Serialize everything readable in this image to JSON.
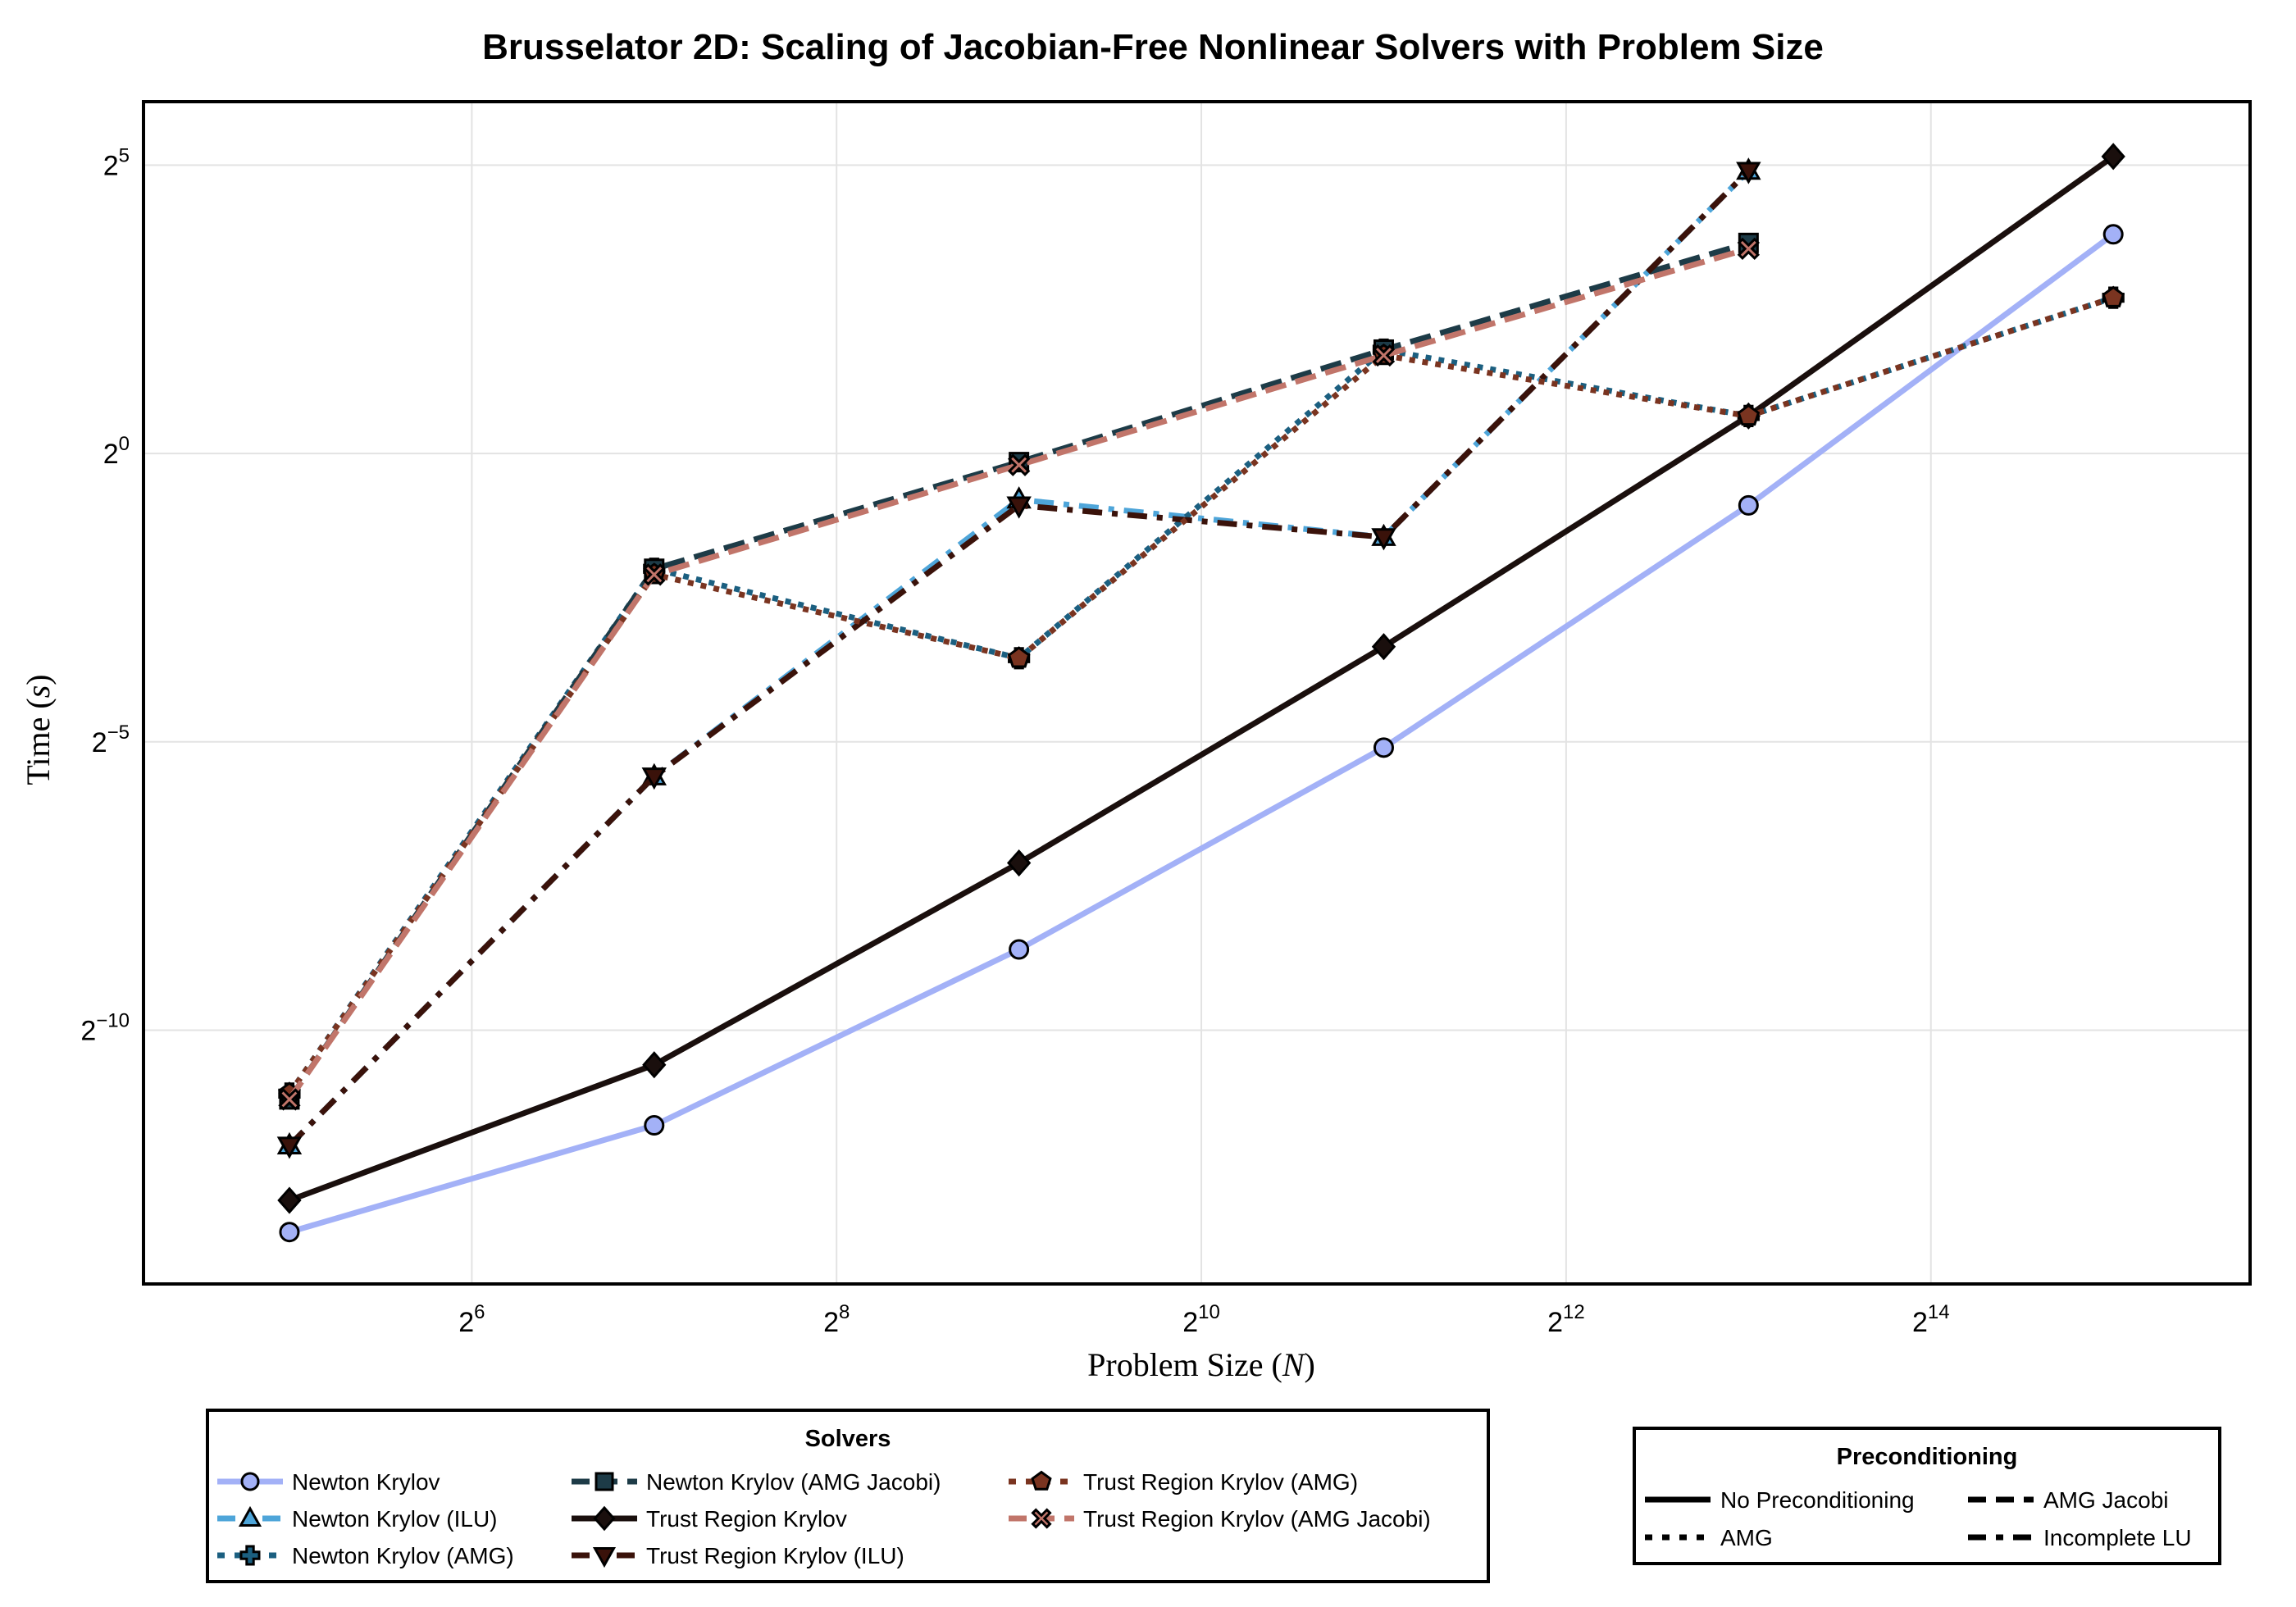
{
  "chart_data": {
    "type": "line",
    "title": "Brusselator 2D: Scaling of Jacobian-Free Nonlinear Solvers with Problem Size",
    "xlabel": "Problem Size (N)",
    "ylabel": "Time (s)",
    "x_scale": "log2",
    "y_scale": "log2",
    "xlim_log2": [
      4.2,
      15.75
    ],
    "ylim_log2": [
      -14.4,
      6.1
    ],
    "x_ticks": [
      {
        "base": "2",
        "exp": "6",
        "log2": 6
      },
      {
        "base": "2",
        "exp": "8",
        "log2": 8
      },
      {
        "base": "2",
        "exp": "10",
        "log2": 10
      },
      {
        "base": "2",
        "exp": "12",
        "log2": 12
      },
      {
        "base": "2",
        "exp": "14",
        "log2": 14
      }
    ],
    "y_ticks": [
      {
        "base": "2",
        "exp": "−10",
        "log2": -10
      },
      {
        "base": "2",
        "exp": "−5",
        "log2": -5
      },
      {
        "base": "2",
        "exp": "0",
        "log2": 0
      },
      {
        "base": "2",
        "exp": "5",
        "log2": 5
      }
    ],
    "grid": true,
    "series": [
      {
        "name": "Newton Krylov",
        "color": "#a3b1f7",
        "dash": "solid",
        "marker": "circle",
        "x_log2": [
          5,
          7,
          9,
          11,
          13,
          15
        ],
        "y_log2": [
          -13.5,
          -11.65,
          -8.6,
          -5.1,
          -0.9,
          3.8
        ]
      },
      {
        "name": "Newton Krylov (ILU)",
        "color": "#4ea5d9",
        "dash": "dashdot",
        "marker": "triangle",
        "x_log2": [
          5,
          7,
          9,
          11,
          13
        ],
        "y_log2": [
          -12,
          -5.6,
          -0.8,
          -1.45,
          4.9
        ]
      },
      {
        "name": "Newton Krylov (AMG)",
        "color": "#1b5f80",
        "dash": "dot",
        "marker": "plus",
        "x_log2": [
          5,
          7,
          9,
          11,
          13,
          15
        ],
        "y_log2": [
          -11.1,
          -2,
          -3.55,
          1.8,
          0.65,
          2.7
        ]
      },
      {
        "name": "Newton Krylov (AMG Jacobi)",
        "color": "#1d3b47",
        "dash": "dash",
        "marker": "square",
        "x_log2": [
          5,
          7,
          9,
          11,
          13
        ],
        "y_log2": [
          -11.2,
          -2,
          -0.15,
          1.8,
          3.65
        ]
      },
      {
        "name": "Trust Region Krylov",
        "color": "#1a0f0d",
        "dash": "solid",
        "marker": "diamond",
        "x_log2": [
          5,
          7,
          9,
          11,
          13,
          15
        ],
        "y_log2": [
          -12.95,
          -10.6,
          -7.1,
          -3.35,
          0.65,
          5.15
        ]
      },
      {
        "name": "Trust Region Krylov (ILU)",
        "color": "#3a120a",
        "dash": "dashdot",
        "marker": "triangle-down",
        "x_log2": [
          5,
          7,
          9,
          11,
          13
        ],
        "y_log2": [
          -12,
          -5.6,
          -0.9,
          -1.45,
          4.9
        ]
      },
      {
        "name": "Trust Region Krylov (AMG)",
        "color": "#7a3420",
        "dash": "dot",
        "marker": "pentagon",
        "x_log2": [
          5,
          7,
          9,
          11,
          13,
          15
        ],
        "y_log2": [
          -11.1,
          -2.1,
          -3.55,
          1.7,
          0.65,
          2.7
        ]
      },
      {
        "name": "Trust Region Krylov (AMG Jacobi)",
        "color": "#c1756a",
        "dash": "dash",
        "marker": "x",
        "x_log2": [
          5,
          7,
          9,
          11,
          13
        ],
        "y_log2": [
          -11.2,
          -2.1,
          -0.2,
          1.7,
          3.55
        ]
      }
    ]
  },
  "legend_solvers": {
    "title": "Solvers",
    "items": [
      "Newton Krylov",
      "Newton Krylov (ILU)",
      "Newton Krylov (AMG)",
      "Newton Krylov (AMG Jacobi)",
      "Trust Region Krylov",
      "Trust Region Krylov (ILU)",
      "Trust Region Krylov (AMG)",
      "Trust Region Krylov (AMG Jacobi)"
    ]
  },
  "legend_preconditioning": {
    "title": "Preconditioning",
    "items": [
      {
        "label": "No Preconditioning",
        "dash": "solid"
      },
      {
        "label": "AMG Jacobi",
        "dash": "dash"
      },
      {
        "label": "AMG",
        "dash": "dot"
      },
      {
        "label": "Incomplete LU",
        "dash": "dashdot"
      }
    ]
  }
}
